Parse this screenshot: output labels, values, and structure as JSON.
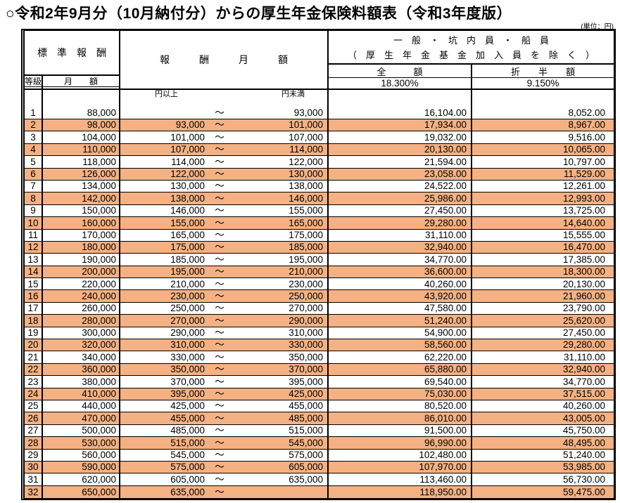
{
  "title": "○令和2年9月分（10月納付分）からの厚生年金保険料額表（令和3年度版）",
  "unit": "(単位：円)",
  "colors": {
    "row_highlight": "#F4B183",
    "border": "#000000",
    "background": "#FFFFFF"
  },
  "header": {
    "standard_reward": "標　準　報　酬",
    "grade": "等級",
    "monthly_amount": "月　　額",
    "reward_monthly": "報　　　酬　　　月　　　額",
    "category_line1": "一　般　・　坑　内　員　・　船　員",
    "category_line2": "（　厚　生　年　金　基　金　加　入　員　を　除　く　）",
    "full_label": "全　　　額",
    "half_label": "折　　半　　額",
    "full_rate": "18.300%",
    "half_rate": "9.150%",
    "yen_over": "円以上",
    "yen_under": "円未満",
    "tilde": "～"
  },
  "rows": [
    {
      "grade": "1",
      "monthly": "88,000",
      "from": "",
      "to": "93,000",
      "full": "16,104.00",
      "half": "8,052.00",
      "highlight": false
    },
    {
      "grade": "2",
      "monthly": "98,000",
      "from": "93,000",
      "to": "101,000",
      "full": "17,934.00",
      "half": "8,967.00",
      "highlight": true
    },
    {
      "grade": "3",
      "monthly": "104,000",
      "from": "101,000",
      "to": "107,000",
      "full": "19,032.00",
      "half": "9,516.00",
      "highlight": false
    },
    {
      "grade": "4",
      "monthly": "110,000",
      "from": "107,000",
      "to": "114,000",
      "full": "20,130.00",
      "half": "10,065.00",
      "highlight": true
    },
    {
      "grade": "5",
      "monthly": "118,000",
      "from": "114,000",
      "to": "122,000",
      "full": "21,594.00",
      "half": "10,797.00",
      "highlight": false
    },
    {
      "grade": "6",
      "monthly": "126,000",
      "from": "122,000",
      "to": "130,000",
      "full": "23,058.00",
      "half": "11,529.00",
      "highlight": true
    },
    {
      "grade": "7",
      "monthly": "134,000",
      "from": "130,000",
      "to": "138,000",
      "full": "24,522.00",
      "half": "12,261.00",
      "highlight": false
    },
    {
      "grade": "8",
      "monthly": "142,000",
      "from": "138,000",
      "to": "146,000",
      "full": "25,986.00",
      "half": "12,993.00",
      "highlight": true
    },
    {
      "grade": "9",
      "monthly": "150,000",
      "from": "146,000",
      "to": "155,000",
      "full": "27,450.00",
      "half": "13,725.00",
      "highlight": false
    },
    {
      "grade": "10",
      "monthly": "160,000",
      "from": "155,000",
      "to": "165,000",
      "full": "29,280.00",
      "half": "14,640.00",
      "highlight": true
    },
    {
      "grade": "11",
      "monthly": "170,000",
      "from": "165,000",
      "to": "175,000",
      "full": "31,110.00",
      "half": "15,555.00",
      "highlight": false
    },
    {
      "grade": "12",
      "monthly": "180,000",
      "from": "175,000",
      "to": "185,000",
      "full": "32,940.00",
      "half": "16,470.00",
      "highlight": true
    },
    {
      "grade": "13",
      "monthly": "190,000",
      "from": "185,000",
      "to": "195,000",
      "full": "34,770.00",
      "half": "17,385.00",
      "highlight": false
    },
    {
      "grade": "14",
      "monthly": "200,000",
      "from": "195,000",
      "to": "210,000",
      "full": "36,600.00",
      "half": "18,300.00",
      "highlight": true
    },
    {
      "grade": "15",
      "monthly": "220,000",
      "from": "210,000",
      "to": "230,000",
      "full": "40,260.00",
      "half": "20,130.00",
      "highlight": false
    },
    {
      "grade": "16",
      "monthly": "240,000",
      "from": "230,000",
      "to": "250,000",
      "full": "43,920.00",
      "half": "21,960.00",
      "highlight": true
    },
    {
      "grade": "17",
      "monthly": "260,000",
      "from": "250,000",
      "to": "270,000",
      "full": "47,580.00",
      "half": "23,790.00",
      "highlight": false
    },
    {
      "grade": "18",
      "monthly": "280,000",
      "from": "270,000",
      "to": "290,000",
      "full": "51,240.00",
      "half": "25,620.00",
      "highlight": true
    },
    {
      "grade": "19",
      "monthly": "300,000",
      "from": "290,000",
      "to": "310,000",
      "full": "54,900.00",
      "half": "27,450.00",
      "highlight": false
    },
    {
      "grade": "20",
      "monthly": "320,000",
      "from": "310,000",
      "to": "330,000",
      "full": "58,560.00",
      "half": "29,280.00",
      "highlight": true
    },
    {
      "grade": "21",
      "monthly": "340,000",
      "from": "330,000",
      "to": "350,000",
      "full": "62,220.00",
      "half": "31,110.00",
      "highlight": false
    },
    {
      "grade": "22",
      "monthly": "360,000",
      "from": "350,000",
      "to": "370,000",
      "full": "65,880.00",
      "half": "32,940.00",
      "highlight": true
    },
    {
      "grade": "23",
      "monthly": "380,000",
      "from": "370,000",
      "to": "395,000",
      "full": "69,540.00",
      "half": "34,770.00",
      "highlight": false
    },
    {
      "grade": "24",
      "monthly": "410,000",
      "from": "395,000",
      "to": "425,000",
      "full": "75,030.00",
      "half": "37,515.00",
      "highlight": true
    },
    {
      "grade": "25",
      "monthly": "440,000",
      "from": "425,000",
      "to": "455,000",
      "full": "80,520.00",
      "half": "40,260.00",
      "highlight": false
    },
    {
      "grade": "26",
      "monthly": "470,000",
      "from": "455,000",
      "to": "485,000",
      "full": "86,010.00",
      "half": "43,005.00",
      "highlight": true
    },
    {
      "grade": "27",
      "monthly": "500,000",
      "from": "485,000",
      "to": "515,000",
      "full": "91,500.00",
      "half": "45,750.00",
      "highlight": false
    },
    {
      "grade": "28",
      "monthly": "530,000",
      "from": "515,000",
      "to": "545,000",
      "full": "96,990.00",
      "half": "48,495.00",
      "highlight": true
    },
    {
      "grade": "29",
      "monthly": "560,000",
      "from": "545,000",
      "to": "575,000",
      "full": "102,480.00",
      "half": "51,240.00",
      "highlight": false
    },
    {
      "grade": "30",
      "monthly": "590,000",
      "from": "575,000",
      "to": "605,000",
      "full": "107,970.00",
      "half": "53,985.00",
      "highlight": true
    },
    {
      "grade": "31",
      "monthly": "620,000",
      "from": "605,000",
      "to": "635,000",
      "full": "113,460.00",
      "half": "56,730.00",
      "highlight": false
    },
    {
      "grade": "32",
      "monthly": "650,000",
      "from": "635,000",
      "to": "",
      "full": "118,950.00",
      "half": "59,475.00",
      "highlight": true
    }
  ]
}
